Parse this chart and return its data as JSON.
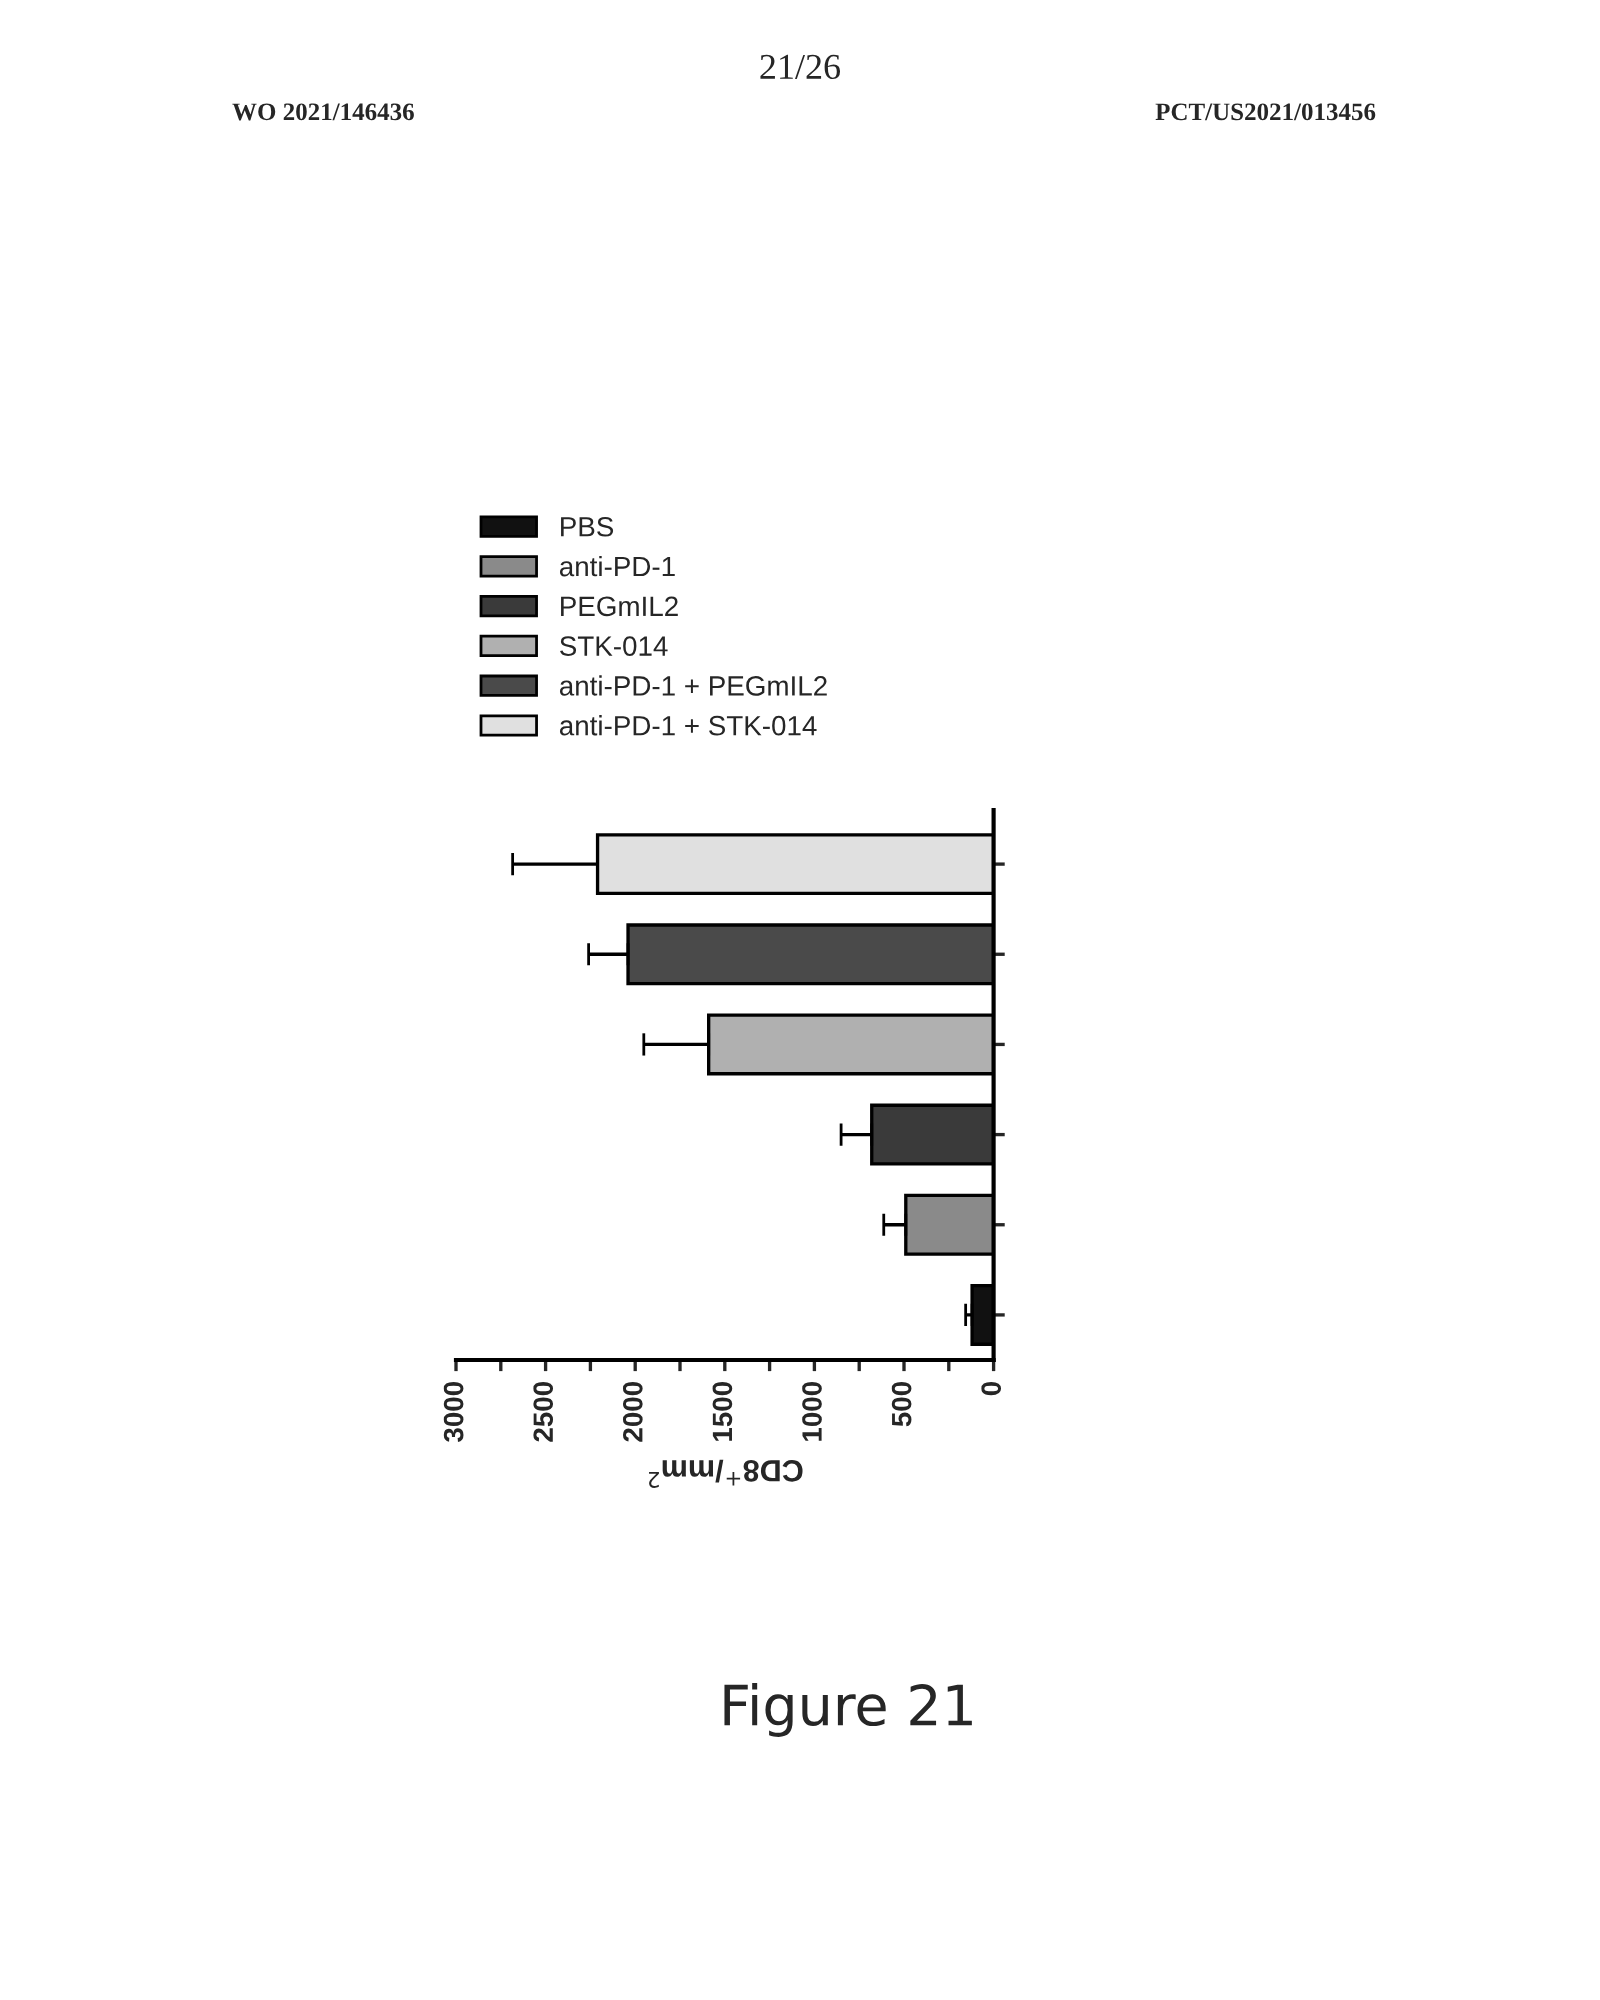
{
  "chart_data": {
    "type": "bar",
    "orientation": "horizontal",
    "categories": [
      null,
      null,
      null,
      null,
      null,
      null
    ],
    "series": [
      {
        "name": "PBS",
        "color": "#111111",
        "values": [
          null,
          null,
          null,
          null,
          null,
          120
        ],
        "errors": [
          null,
          null,
          null,
          null,
          null,
          [
            120,
            156
          ]
        ]
      },
      {
        "name": "anti-PD-1",
        "color": "#8a8a8a",
        "values": [
          null,
          null,
          null,
          null,
          490,
          null
        ],
        "errors": [
          null,
          null,
          null,
          null,
          [
            490,
            613
          ],
          null
        ]
      },
      {
        "name": "PEGmIL2",
        "color": "#3a3a3a",
        "values": [
          null,
          null,
          null,
          680,
          null,
          null
        ],
        "errors": [
          null,
          null,
          null,
          [
            680,
            851
          ],
          null,
          null
        ]
      },
      {
        "name": "STK-014",
        "color": "#b0b0b0",
        "values": [
          null,
          null,
          1590,
          null,
          null,
          null
        ],
        "errors": [
          null,
          null,
          [
            1590,
            1952
          ],
          null,
          null,
          null
        ]
      },
      {
        "name": "anti-PD-1 + PEGmIL2",
        "color": "#4a4a4a",
        "values": [
          null,
          2040,
          null,
          null,
          null,
          null
        ],
        "errors": [
          null,
          [
            2040,
            2260
          ],
          null,
          null,
          null,
          null
        ]
      },
      {
        "name": "anti-PD-1 + STK-014",
        "color": "#e0e0e0",
        "values": [
          2210,
          null,
          null,
          null,
          null,
          null
        ],
        "errors": [
          [
            2210,
            2684
          ],
          null,
          null,
          null,
          null,
          null
        ]
      }
    ],
    "xlabel": "CD8$^{+}$/mm$^{2}$",
    "xlim": [
      3000,
      0
    ],
    "xticks": [
      0,
      {
        "value": 250,
        "label": null
      },
      500,
      {
        "value": 750,
        "label": null
      },
      1000,
      {
        "value": 1250,
        "label": null
      },
      1500,
      {
        "value": 1750,
        "label": null
      },
      2000,
      {
        "value": 2250,
        "label": null
      },
      2500,
      {
        "value": 2750,
        "label": null
      },
      3000
    ],
    "grid": false,
    "legend": "top",
    "annotations": [
      "21/26",
      "WO 2021/146436",
      "PCT/US2021/013456",
      "Figure 21"
    ]
  }
}
